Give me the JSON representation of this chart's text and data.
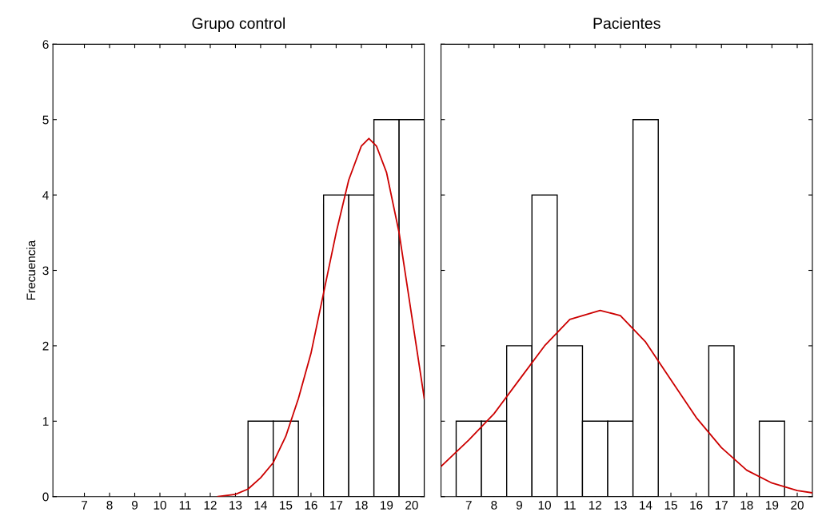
{
  "chart_data": [
    {
      "type": "histogram",
      "title": "Grupo control",
      "ylabel": "Frecuencia",
      "bins": [
        6.5,
        7.5,
        8.5,
        9.5,
        10.5,
        11.5,
        12.5,
        13.5,
        14.5,
        15.5,
        16.5,
        17.5,
        18.5,
        19.5,
        20.5
      ],
      "xlim": [
        5.75,
        20.5
      ],
      "xticks": [
        7,
        8,
        9,
        10,
        11,
        12,
        13,
        14,
        15,
        16,
        17,
        18,
        19,
        20
      ],
      "ylim": [
        0,
        6
      ],
      "yticks": [
        0,
        1,
        2,
        3,
        4,
        5,
        6
      ],
      "grid": false,
      "series": [
        {
          "color": "#ffffff",
          "values": [
            0,
            0,
            0,
            0,
            0,
            0,
            0,
            1,
            1,
            0,
            4,
            4,
            5,
            5
          ]
        },
        {
          "type": "line",
          "color": "#cc0000",
          "x": [
            12.3,
            13,
            13.5,
            14,
            14.5,
            15,
            15.5,
            16,
            16.5,
            17,
            17.5,
            18,
            18.3,
            18.6,
            19,
            19.5,
            20,
            20.5
          ],
          "values": [
            0,
            0.03,
            0.1,
            0.25,
            0.45,
            0.8,
            1.3,
            1.9,
            2.7,
            3.5,
            4.2,
            4.65,
            4.75,
            4.65,
            4.3,
            3.5,
            2.4,
            1.3
          ]
        }
      ]
    },
    {
      "type": "histogram",
      "title": "Pacientes",
      "bins": [
        6.5,
        7.5,
        8.5,
        9.5,
        10.5,
        11.5,
        12.5,
        13.5,
        14.5,
        15.5,
        16.5,
        17.5,
        18.5,
        19.5,
        20.5
      ],
      "xlim": [
        5.9,
        20.6
      ],
      "xticks": [
        7,
        8,
        9,
        10,
        11,
        12,
        13,
        14,
        15,
        16,
        17,
        18,
        19,
        20
      ],
      "ylim": [
        0,
        6
      ],
      "yticks": [
        0,
        1,
        2,
        3,
        4,
        5,
        6
      ],
      "tick_labels": "x",
      "grid": false,
      "series": [
        {
          "color": "#ffffff",
          "values": [
            1,
            1,
            2,
            4,
            2,
            1,
            1,
            5,
            0,
            0,
            2,
            0,
            1,
            0
          ]
        },
        {
          "type": "line",
          "color": "#cc0000",
          "x": [
            5.9,
            7,
            8,
            9,
            10,
            11,
            12.2,
            13,
            14,
            15,
            16,
            17,
            18,
            19,
            20,
            20.6
          ],
          "values": [
            0.4,
            0.75,
            1.1,
            1.55,
            2.0,
            2.35,
            2.47,
            2.4,
            2.05,
            1.55,
            1.05,
            0.65,
            0.35,
            0.18,
            0.08,
            0.05
          ]
        }
      ]
    }
  ]
}
